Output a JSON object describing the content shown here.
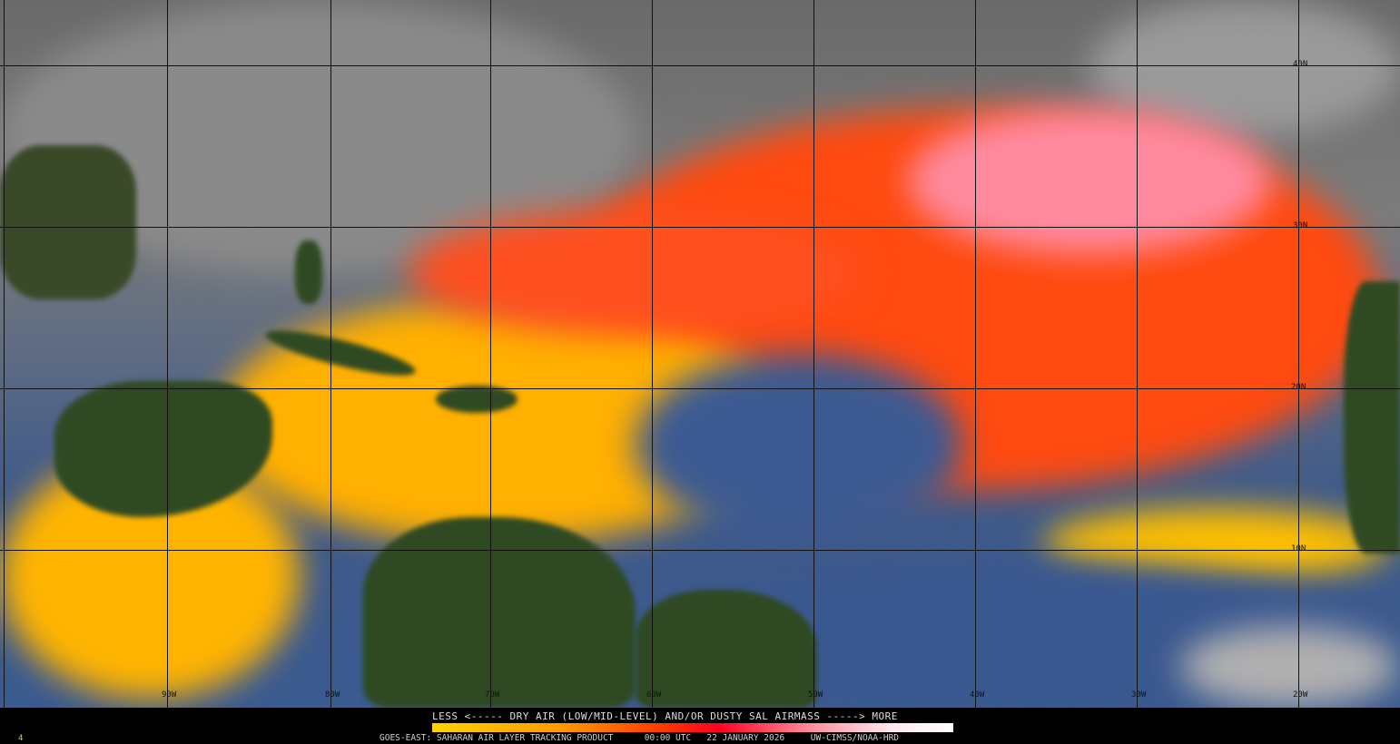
{
  "legend": {
    "title": "LESS <----- DRY AIR (LOW/MID-LEVEL) AND/OR DUSTY SAL AIRMASS -----> MORE",
    "colors": [
      "#ffd200",
      "#ff9a00",
      "#ff3300",
      "#ff0022",
      "#ff8a9a",
      "#ffffff"
    ]
  },
  "footer": {
    "product": "GOES-EAST: SAHARAN AIR LAYER TRACKING PRODUCT",
    "time": "00:00 UTC",
    "date": "22 JANUARY 2026",
    "credit": "UW-CIMSS/NOAA-HRD"
  },
  "frame_number": "4",
  "latitude_labels": [
    "40N",
    "30N",
    "20N",
    "10N"
  ],
  "longitude_labels": [
    "90W",
    "80W",
    "70W",
    "60W",
    "50W",
    "40W",
    "30W",
    "20W"
  ]
}
